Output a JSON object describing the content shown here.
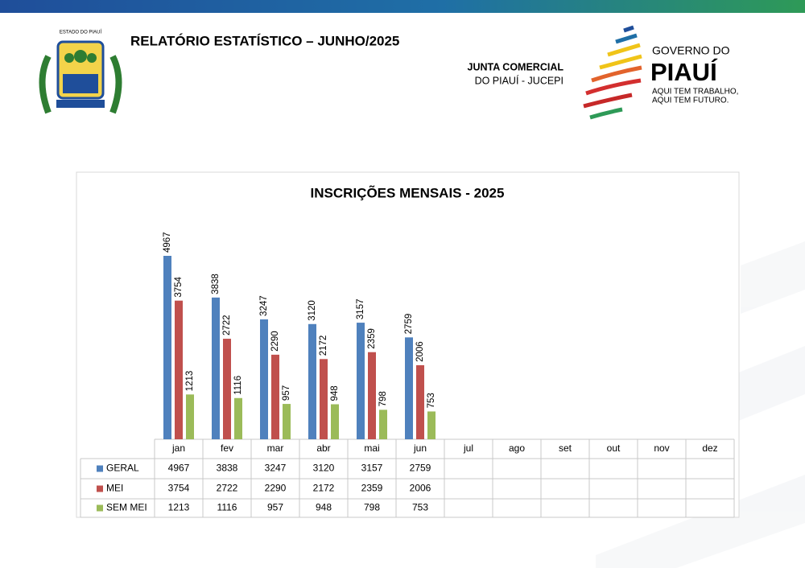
{
  "header": {
    "title": "RELATÓRIO ESTATÍSTICO – JUNHO/2025",
    "org_line1": "JUNTA COMERCIAL",
    "org_line2": "DO PIAUÍ - JUCEPI",
    "emblem_text": "ESTADO DO PIAUÍ",
    "logo_line1": "GOVERNO DO",
    "logo_line2": "PIAUÍ",
    "logo_slogan1": "AQUI TEM TRABALHO,",
    "logo_slogan2": "AQUI TEM FUTURO."
  },
  "chart_data": {
    "type": "bar",
    "title": "INSCRIÇÕES MENSAIS - 2025",
    "categories": [
      "jan",
      "fev",
      "mar",
      "abr",
      "mai",
      "jun",
      "jul",
      "ago",
      "set",
      "out",
      "nov",
      "dez"
    ],
    "series": [
      {
        "name": "GERAL",
        "color": "#4f81bd",
        "values": [
          4967,
          3838,
          3247,
          3120,
          3157,
          2759,
          null,
          null,
          null,
          null,
          null,
          null
        ]
      },
      {
        "name": "MEI",
        "color": "#c0504d",
        "values": [
          3754,
          2722,
          2290,
          2172,
          2359,
          2006,
          null,
          null,
          null,
          null,
          null,
          null
        ]
      },
      {
        "name": "SEM MEI",
        "color": "#9bbb59",
        "values": [
          1213,
          1116,
          957,
          948,
          798,
          753,
          null,
          null,
          null,
          null,
          null,
          null
        ]
      }
    ]
  }
}
